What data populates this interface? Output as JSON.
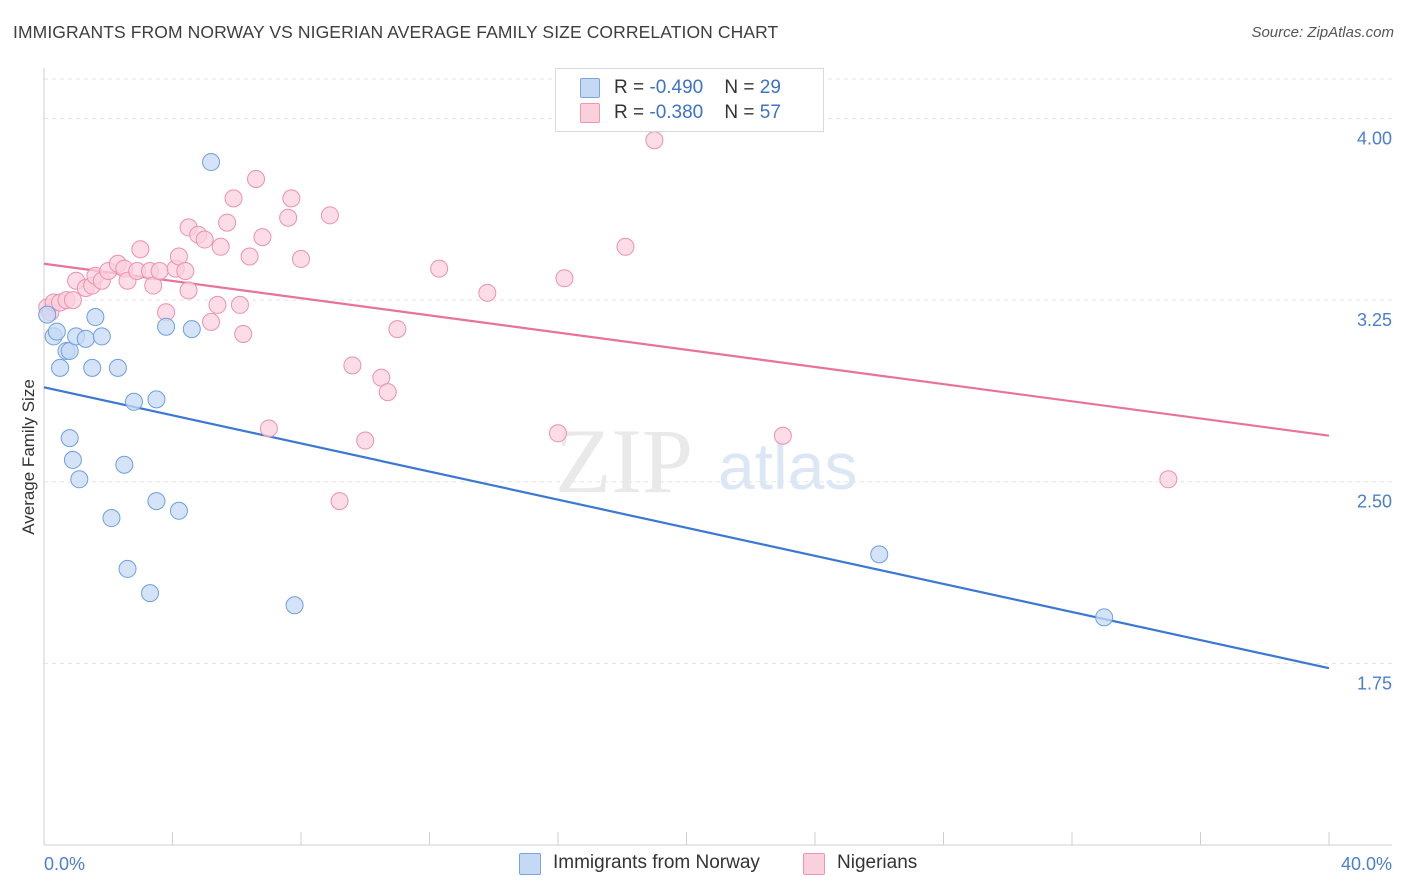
{
  "title": "IMMIGRANTS FROM NORWAY VS NIGERIAN AVERAGE FAMILY SIZE CORRELATION CHART",
  "source": "Source: ZipAtlas.com",
  "watermark": {
    "zip": "ZIP",
    "atlas": "atlas"
  },
  "stats": [
    {
      "r_label": "R = ",
      "r_value": "-0.490",
      "n_label": "N = ",
      "n_value": "29",
      "color": "blue"
    },
    {
      "r_label": "R = ",
      "r_value": "-0.380",
      "n_label": "N = ",
      "n_value": "57",
      "color": "pink"
    }
  ],
  "legend": [
    {
      "label": "Immigrants from Norway",
      "color": "blue"
    },
    {
      "label": "Nigerians",
      "color": "pink"
    }
  ],
  "chart_data": {
    "type": "scatter",
    "title": "IMMIGRANTS FROM NORWAY VS NIGERIAN AVERAGE FAMILY SIZE CORRELATION CHART",
    "xlabel": "",
    "ylabel": "Average Family Size",
    "xlim": [
      0,
      40
    ],
    "ylim": [
      1.0,
      4.2
    ],
    "x_tick_labels": [
      "0.0%",
      "40.0%"
    ],
    "y_ticks": [
      1.75,
      2.5,
      3.25,
      4.0
    ],
    "y_tick_labels": [
      "1.75",
      "2.50",
      "3.25",
      "4.00"
    ],
    "grid": true,
    "legend_position": "bottom-center",
    "colors": {
      "blue": "#6f9fdd",
      "blue_fill": "#c5d9f5",
      "blue_line": "#3a78d4",
      "pink": "#ec91ae",
      "pink_fill": "#fbd0dd",
      "pink_line": "#e7739a",
      "axis_text": "#4a7fcf"
    },
    "series": [
      {
        "name": "Immigrants from Norway",
        "color": "blue",
        "trend": {
          "x": [
            0,
            40
          ],
          "y": [
            2.89,
            1.73
          ]
        },
        "points": [
          [
            0.1,
            3.19
          ],
          [
            0.3,
            3.1
          ],
          [
            0.4,
            3.12
          ],
          [
            0.5,
            2.97
          ],
          [
            0.7,
            3.04
          ],
          [
            0.8,
            3.04
          ],
          [
            0.9,
            2.59
          ],
          [
            0.8,
            2.68
          ],
          [
            1.1,
            2.51
          ],
          [
            1.0,
            3.1
          ],
          [
            1.3,
            3.09
          ],
          [
            1.5,
            2.97
          ],
          [
            1.6,
            3.18
          ],
          [
            1.8,
            3.1
          ],
          [
            2.3,
            2.97
          ],
          [
            2.5,
            2.57
          ],
          [
            2.1,
            2.35
          ],
          [
            2.6,
            2.14
          ],
          [
            2.8,
            2.83
          ],
          [
            3.3,
            2.04
          ],
          [
            3.5,
            2.84
          ],
          [
            3.5,
            2.42
          ],
          [
            3.8,
            3.14
          ],
          [
            4.2,
            2.38
          ],
          [
            4.6,
            3.13
          ],
          [
            5.2,
            3.82
          ],
          [
            7.8,
            1.99
          ],
          [
            26.0,
            2.2
          ],
          [
            33.0,
            1.94
          ]
        ]
      },
      {
        "name": "Nigerians",
        "color": "pink",
        "trend": {
          "x": [
            0,
            40
          ],
          "y": [
            3.4,
            2.69
          ]
        },
        "points": [
          [
            0.1,
            3.22
          ],
          [
            0.2,
            3.2
          ],
          [
            0.3,
            3.24
          ],
          [
            0.5,
            3.24
          ],
          [
            0.7,
            3.25
          ],
          [
            0.9,
            3.25
          ],
          [
            1.0,
            3.33
          ],
          [
            1.3,
            3.3
          ],
          [
            1.5,
            3.31
          ],
          [
            1.6,
            3.35
          ],
          [
            1.8,
            3.33
          ],
          [
            2.0,
            3.37
          ],
          [
            2.3,
            3.4
          ],
          [
            2.5,
            3.38
          ],
          [
            2.6,
            3.33
          ],
          [
            2.9,
            3.37
          ],
          [
            3.0,
            3.46
          ],
          [
            3.3,
            3.37
          ],
          [
            3.4,
            3.31
          ],
          [
            3.6,
            3.37
          ],
          [
            3.8,
            3.2
          ],
          [
            4.1,
            3.38
          ],
          [
            4.2,
            3.43
          ],
          [
            4.4,
            3.37
          ],
          [
            4.5,
            3.29
          ],
          [
            4.5,
            3.55
          ],
          [
            4.8,
            3.52
          ],
          [
            5.0,
            3.5
          ],
          [
            5.2,
            3.16
          ],
          [
            5.4,
            3.23
          ],
          [
            5.5,
            3.47
          ],
          [
            5.7,
            3.57
          ],
          [
            5.9,
            3.67
          ],
          [
            6.1,
            3.23
          ],
          [
            6.2,
            3.11
          ],
          [
            6.4,
            3.43
          ],
          [
            6.6,
            3.75
          ],
          [
            6.8,
            3.51
          ],
          [
            7.0,
            2.72
          ],
          [
            7.6,
            3.59
          ],
          [
            7.7,
            3.67
          ],
          [
            8.0,
            3.42
          ],
          [
            8.9,
            3.6
          ],
          [
            9.2,
            2.42
          ],
          [
            9.6,
            2.98
          ],
          [
            10.0,
            2.67
          ],
          [
            10.5,
            2.93
          ],
          [
            10.7,
            2.87
          ],
          [
            11.0,
            3.13
          ],
          [
            12.3,
            3.38
          ],
          [
            13.8,
            3.28
          ],
          [
            16.0,
            2.7
          ],
          [
            16.2,
            3.34
          ],
          [
            18.1,
            3.47
          ],
          [
            19.0,
            3.91
          ],
          [
            23.0,
            2.69
          ],
          [
            35.0,
            2.51
          ]
        ]
      }
    ]
  }
}
